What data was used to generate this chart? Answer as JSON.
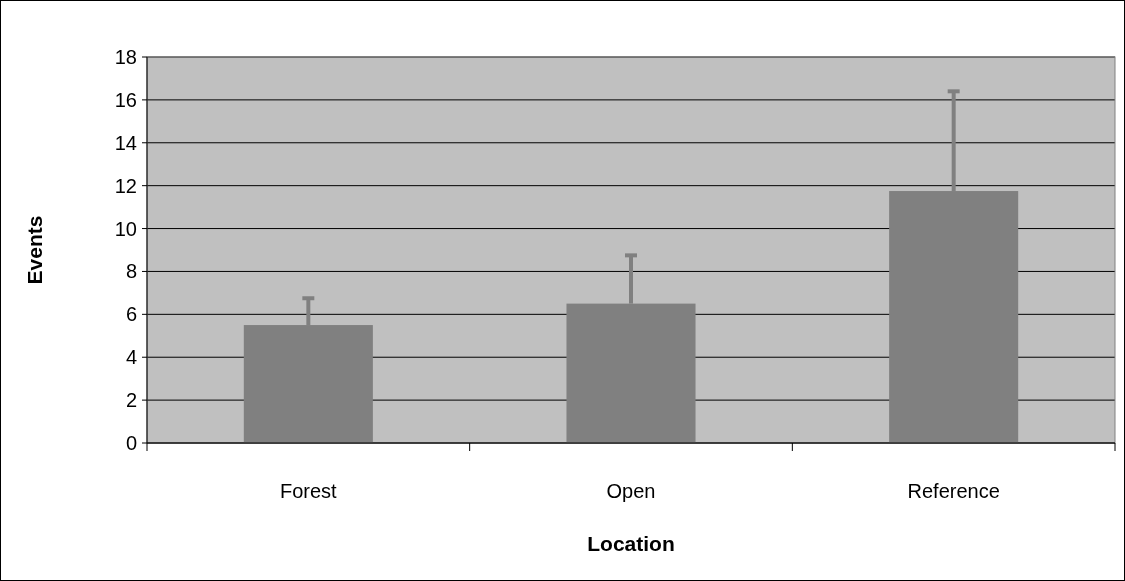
{
  "chart_data": {
    "type": "bar",
    "xlabel": "Location",
    "ylabel": "Events",
    "categories": [
      "Forest",
      "Open",
      "Reference"
    ],
    "values": [
      5.5,
      6.5,
      11.75
    ],
    "errors": [
      [
        5.5,
        6.75
      ],
      [
        6.5,
        8.75
      ],
      [
        11.75,
        16.4
      ]
    ],
    "color": "#808080",
    "ylim": [
      0,
      18
    ],
    "yticks": [
      0,
      2,
      4,
      6,
      8,
      10,
      12,
      14,
      16,
      18
    ],
    "grid": "y"
  }
}
